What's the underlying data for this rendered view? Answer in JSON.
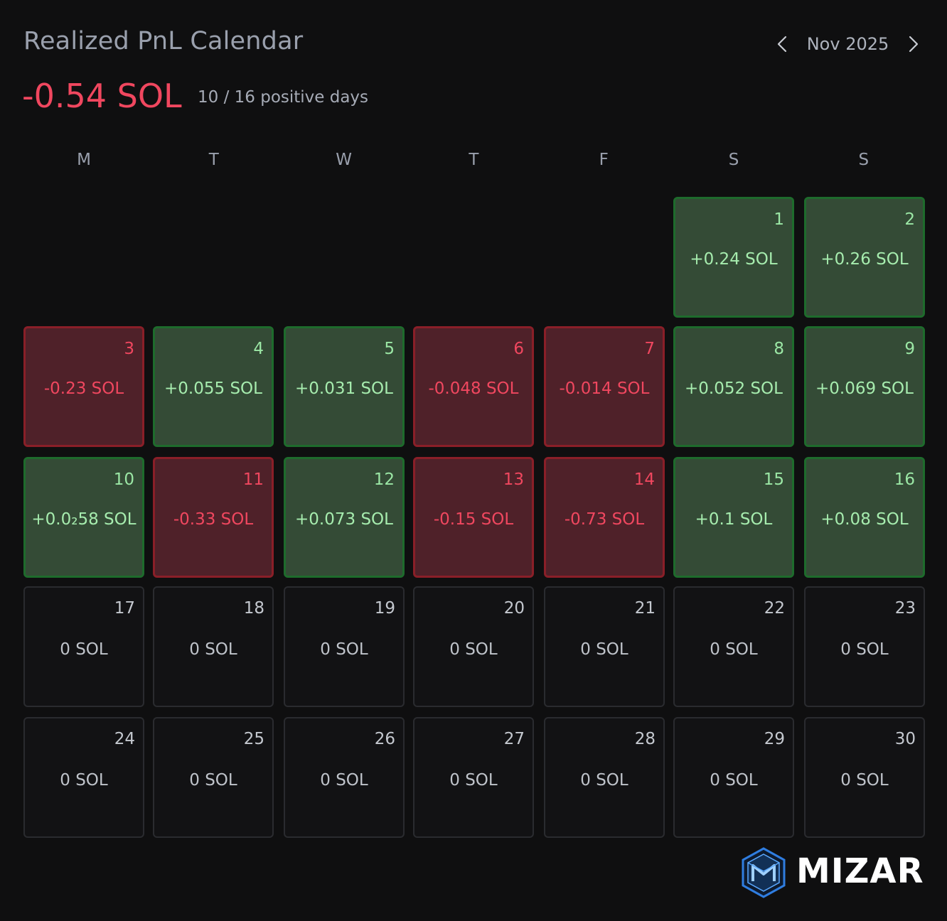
{
  "title": "Realized PnL Calendar",
  "month_label": "Nov 2025",
  "total_pnl": "-0.54 SOL",
  "positive_days": "10 / 16 positive days",
  "weekdays": [
    "M",
    "T",
    "W",
    "T",
    "F",
    "S",
    "S"
  ],
  "brand": "MIZAR",
  "colors": {
    "negative": "#f0475f",
    "positive": "#a6ecae",
    "positive_bg": "#344b36",
    "negative_bg": "#4f2129",
    "background": "#0f0f10"
  },
  "icons": {
    "prev": "chevron-left-icon",
    "next": "chevron-right-icon",
    "logo": "mizar-logo-icon"
  },
  "days": [
    {
      "day": "1",
      "value": "+0.24 SOL",
      "status": "pos"
    },
    {
      "day": "2",
      "value": "+0.26 SOL",
      "status": "pos"
    },
    {
      "day": "3",
      "value": "-0.23 SOL",
      "status": "neg"
    },
    {
      "day": "4",
      "value": "+0.055 SOL",
      "status": "pos"
    },
    {
      "day": "5",
      "value": "+0.031 SOL",
      "status": "pos"
    },
    {
      "day": "6",
      "value": "-0.048 SOL",
      "status": "neg"
    },
    {
      "day": "7",
      "value": "-0.014 SOL",
      "status": "neg"
    },
    {
      "day": "8",
      "value": "+0.052 SOL",
      "status": "pos"
    },
    {
      "day": "9",
      "value": "+0.069 SOL",
      "status": "pos"
    },
    {
      "day": "10",
      "value": "+0.0₂58 SOL",
      "status": "pos"
    },
    {
      "day": "11",
      "value": "-0.33 SOL",
      "status": "neg"
    },
    {
      "day": "12",
      "value": "+0.073 SOL",
      "status": "pos"
    },
    {
      "day": "13",
      "value": "-0.15 SOL",
      "status": "neg"
    },
    {
      "day": "14",
      "value": "-0.73 SOL",
      "status": "neg"
    },
    {
      "day": "15",
      "value": "+0.1 SOL",
      "status": "pos"
    },
    {
      "day": "16",
      "value": "+0.08 SOL",
      "status": "pos"
    },
    {
      "day": "17",
      "value": "0 SOL",
      "status": "zero"
    },
    {
      "day": "18",
      "value": "0 SOL",
      "status": "zero"
    },
    {
      "day": "19",
      "value": "0 SOL",
      "status": "zero"
    },
    {
      "day": "20",
      "value": "0 SOL",
      "status": "zero"
    },
    {
      "day": "21",
      "value": "0 SOL",
      "status": "zero"
    },
    {
      "day": "22",
      "value": "0 SOL",
      "status": "zero"
    },
    {
      "day": "23",
      "value": "0 SOL",
      "status": "zero"
    },
    {
      "day": "24",
      "value": "0 SOL",
      "status": "zero"
    },
    {
      "day": "25",
      "value": "0 SOL",
      "status": "zero"
    },
    {
      "day": "26",
      "value": "0 SOL",
      "status": "zero"
    },
    {
      "day": "27",
      "value": "0 SOL",
      "status": "zero"
    },
    {
      "day": "28",
      "value": "0 SOL",
      "status": "zero"
    },
    {
      "day": "29",
      "value": "0 SOL",
      "status": "zero"
    },
    {
      "day": "30",
      "value": "0 SOL",
      "status": "zero"
    }
  ]
}
